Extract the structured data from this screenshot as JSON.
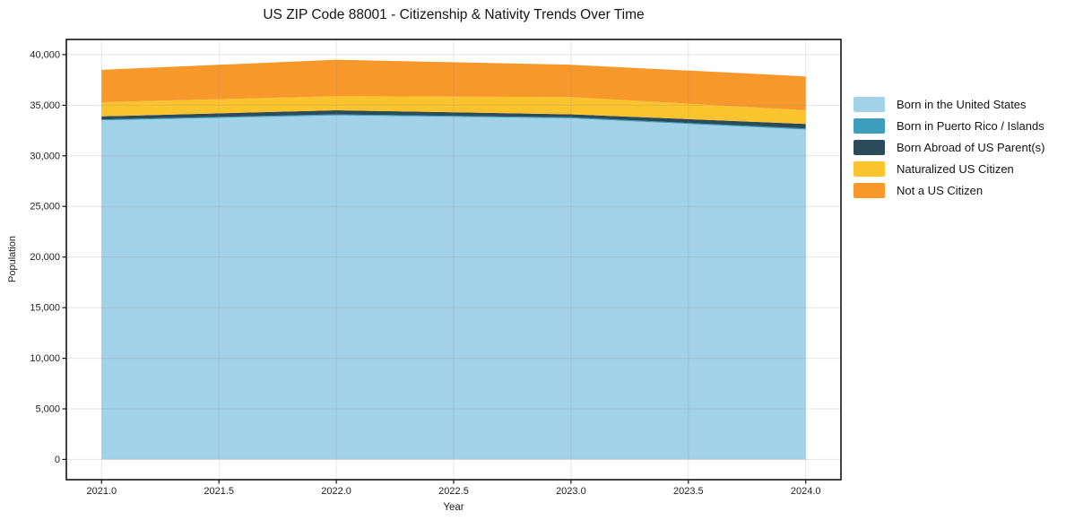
{
  "chart_data": {
    "type": "area",
    "stacked": true,
    "title": "US ZIP Code 88001 - Citizenship & Nativity Trends Over Time",
    "xlabel": "Year",
    "ylabel": "Population",
    "x": [
      2021,
      2022,
      2023,
      2024
    ],
    "series": [
      {
        "name": "Born in the United States",
        "color": "#a2d2e8",
        "values": [
          33500,
          34000,
          33700,
          32600
        ]
      },
      {
        "name": "Born in Puerto Rico / Islands",
        "color": "#3d9dbd",
        "values": [
          100,
          100,
          100,
          100
        ]
      },
      {
        "name": "Born Abroad of US Parent(s)",
        "color": "#2a4b5c",
        "values": [
          300,
          400,
          300,
          450
        ]
      },
      {
        "name": "Naturalized US Citizen",
        "color": "#fcc42c",
        "values": [
          1400,
          1400,
          1700,
          1350
        ]
      },
      {
        "name": "Not a US Citizen",
        "color": "#f8982b",
        "values": [
          3200,
          3600,
          3200,
          3350
        ]
      }
    ],
    "xlim": [
      2020.85,
      2024.15
    ],
    "ylim": [
      -2000,
      41500
    ],
    "xticks": [
      2021.0,
      2021.5,
      2022.0,
      2022.5,
      2023.0,
      2023.5,
      2024.0
    ],
    "xtick_labels": [
      "2021.0",
      "2021.5",
      "2022.0",
      "2022.5",
      "2023.0",
      "2023.5",
      "2024.0"
    ],
    "yticks": [
      0,
      5000,
      10000,
      15000,
      20000,
      25000,
      30000,
      35000,
      40000
    ],
    "ytick_labels": [
      "0",
      "5,000",
      "10,000",
      "15,000",
      "20,000",
      "25,000",
      "30,000",
      "35,000",
      "40,000"
    ],
    "grid": true,
    "legend_position": "right",
    "background": "#ffffff"
  }
}
